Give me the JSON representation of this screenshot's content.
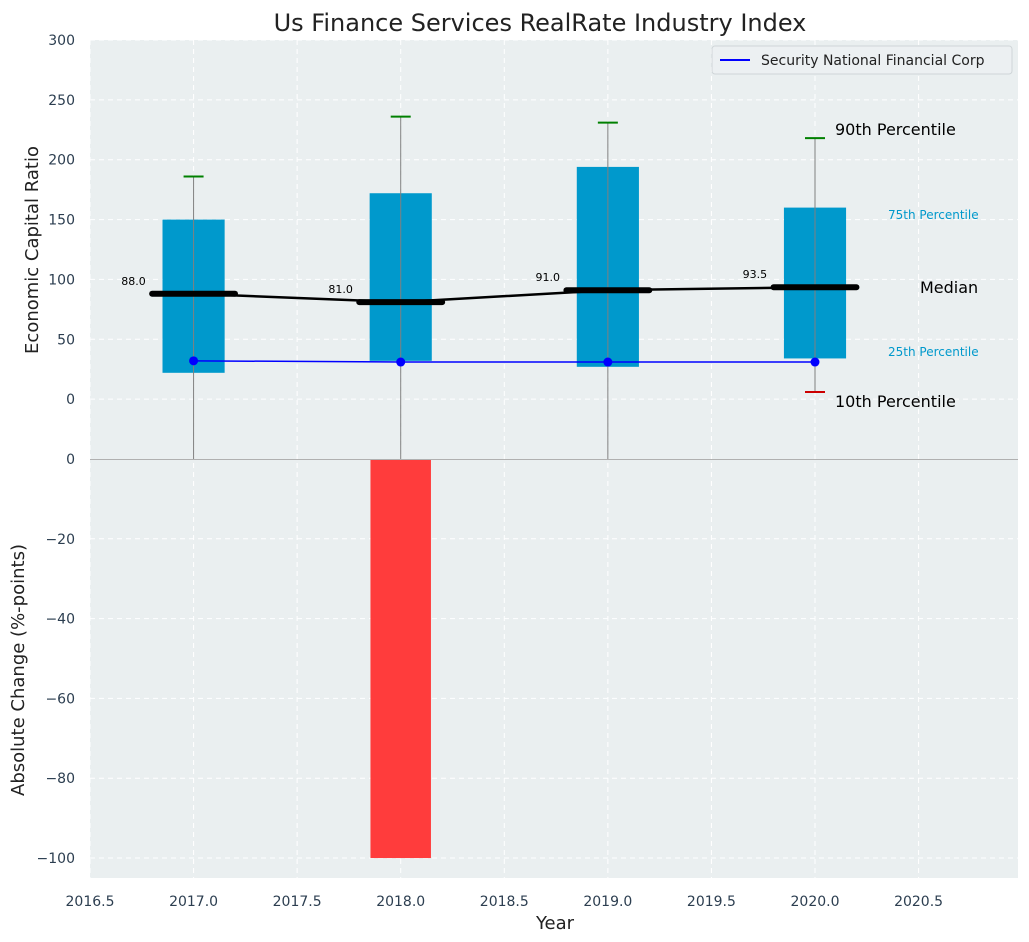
{
  "chart_data": {
    "type": "bar",
    "title": "Us Finance Services RealRate Industry Index",
    "xlabel": "Year",
    "xlim": [
      2016.5,
      2020.98
    ],
    "xticks": [
      "2016.5",
      "2017.0",
      "2017.5",
      "2018.0",
      "2018.5",
      "2019.0",
      "2019.5",
      "2020.0",
      "2020.5"
    ],
    "top_panel": {
      "ylabel": "Economic Capital Ratio",
      "ylim": [
        -50,
        300
      ],
      "yticks": [
        "0",
        "50",
        "100",
        "150",
        "200",
        "250",
        "300"
      ],
      "years": [
        2017,
        2018,
        2019,
        2020
      ],
      "p10": [
        null,
        null,
        null,
        6
      ],
      "p25": [
        22,
        32,
        27,
        34
      ],
      "median": [
        88.0,
        81.0,
        91.0,
        93.5
      ],
      "median_labels": [
        "88.0",
        "81.0",
        "91.0",
        "93.5"
      ],
      "p75": [
        150,
        172,
        194,
        160
      ],
      "p90": [
        186,
        236,
        231,
        218
      ],
      "company": {
        "name": "Security National Financial Corp",
        "values": [
          32,
          31,
          31,
          31
        ]
      },
      "annotations": {
        "p90": "90th Percentile",
        "p75": "75th Percentile",
        "median": "Median",
        "p25": "25th Percentile",
        "p10": "10th Percentile"
      }
    },
    "bottom_panel": {
      "ylabel": "Absolute Change (%-points)",
      "ylim": [
        -105,
        0
      ],
      "yticks": [
        "0",
        "−20",
        "−40",
        "−60",
        "−80",
        "−100"
      ],
      "years": [
        2018
      ],
      "values": [
        -100
      ]
    },
    "grid": true,
    "legend_position": "top-right",
    "colors": {
      "box": "#0099cc",
      "median": "#000000",
      "company": "#0000ff",
      "p90_cap": "#008000",
      "p10_cap": "#cc0000",
      "change_bar": "#ff3c3c",
      "panel_bg": "#eaeff0",
      "tick_text": "#2c3e50"
    }
  }
}
